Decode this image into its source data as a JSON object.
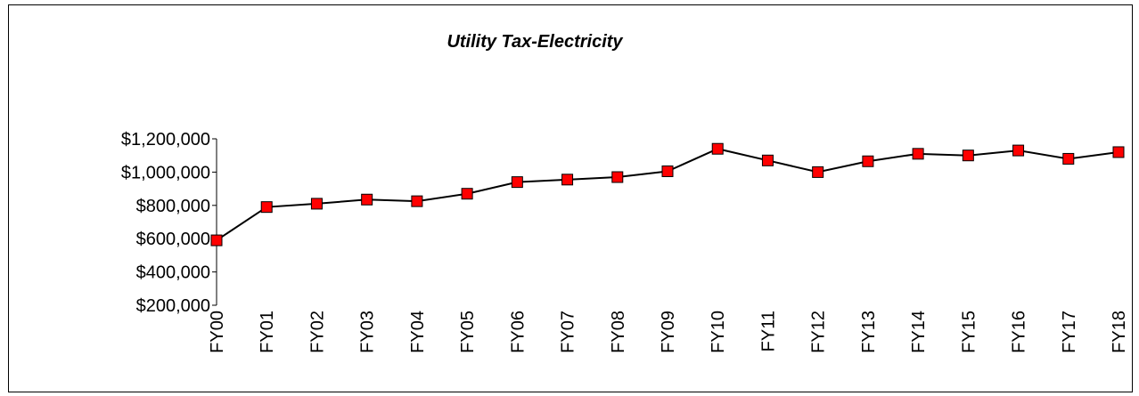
{
  "chart_data": {
    "type": "line",
    "title": "Utility Tax-Electricity",
    "categories": [
      "FY00",
      "FY01",
      "FY02",
      "FY03",
      "FY04",
      "FY05",
      "FY06",
      "FY07",
      "FY08",
      "FY09",
      "FY10",
      "FY11",
      "FY12",
      "FY13",
      "FY14",
      "FY15",
      "FY16",
      "FY17",
      "FY18"
    ],
    "series": [
      {
        "color": "#ff0000",
        "line_color": "#000000",
        "values": [
          590000,
          790000,
          810000,
          835000,
          825000,
          870000,
          940000,
          955000,
          970000,
          1005000,
          1140000,
          1070000,
          1000000,
          1065000,
          1110000,
          1100000,
          1130000,
          1080000,
          1120000
        ]
      }
    ],
    "ylim": [
      200000,
      1200000
    ],
    "yticks": [
      {
        "value": 200000,
        "label": "$200,000"
      },
      {
        "value": 400000,
        "label": "$400,000"
      },
      {
        "value": 600000,
        "label": "$600,000"
      },
      {
        "value": 800000,
        "label": "$800,000"
      },
      {
        "value": 1000000,
        "label": "$1,000,000"
      },
      {
        "value": 1200000,
        "label": "$1,200,000"
      }
    ],
    "grid": false
  }
}
